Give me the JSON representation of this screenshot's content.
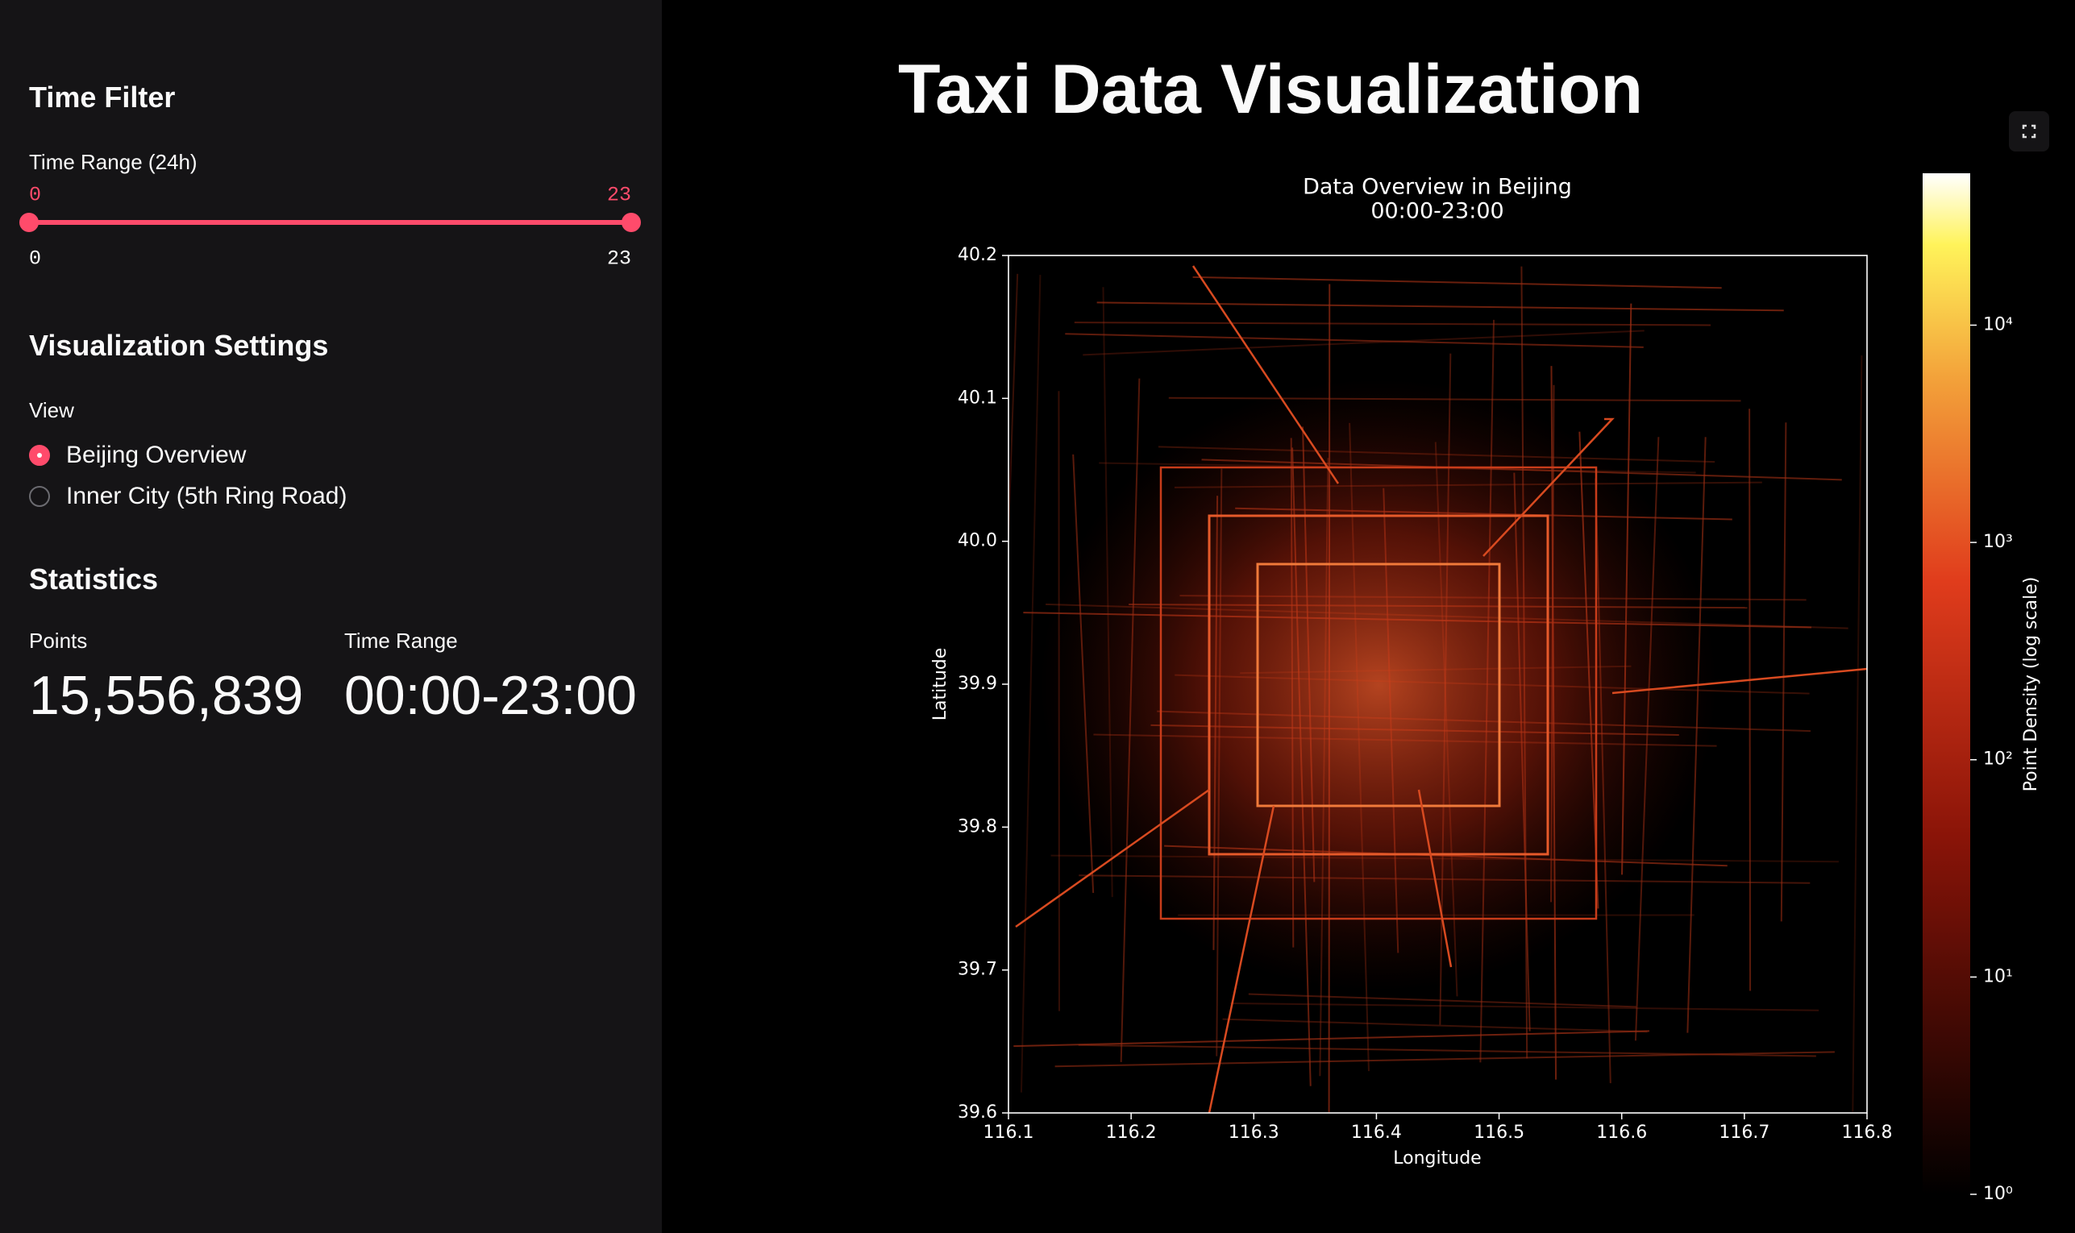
{
  "sidebar": {
    "time_filter": {
      "heading": "Time Filter",
      "slider": {
        "label": "Time Range (24h)",
        "min": 0,
        "max": 23,
        "value": [
          0,
          23
        ]
      }
    },
    "settings": {
      "heading": "Visualization Settings",
      "view_label": "View",
      "options": [
        "Beijing Overview",
        "Inner City (5th Ring Road)"
      ],
      "selected": 0
    },
    "statistics": {
      "heading": "Statistics",
      "metrics": [
        {
          "label": "Points",
          "value": "15,556,839"
        },
        {
          "label": "Time Range",
          "value": "00:00-23:00"
        }
      ]
    }
  },
  "main": {
    "title": "Taxi Data Visualization"
  },
  "chart_data": {
    "type": "heatmap",
    "title": "Data Overview in Beijing",
    "subtitle": "00:00-23:00",
    "x_label": "Longitude",
    "y_label": "Latitude",
    "xlim": [
      116.1,
      116.8
    ],
    "xticks": [
      116.1,
      116.2,
      116.3,
      116.4,
      116.5,
      116.6,
      116.7,
      116.8
    ],
    "ylim": [
      39.6,
      40.2
    ],
    "yticks": [
      39.6,
      39.7,
      39.8,
      39.9,
      {
        "value": 40.0,
        "label": "40.0"
      },
      40.1,
      40.2
    ],
    "colorbar": {
      "label": "Point Density (log scale)",
      "log_scale": true,
      "lim": [
        1,
        50000
      ],
      "ticks": [
        {
          "value": 1,
          "label": "10⁰"
        },
        {
          "value": 10,
          "label": "10¹"
        },
        {
          "value": 100,
          "label": "10²"
        },
        {
          "value": 1000,
          "label": "10³"
        },
        {
          "value": 10000,
          "label": "10⁴"
        }
      ]
    }
  }
}
